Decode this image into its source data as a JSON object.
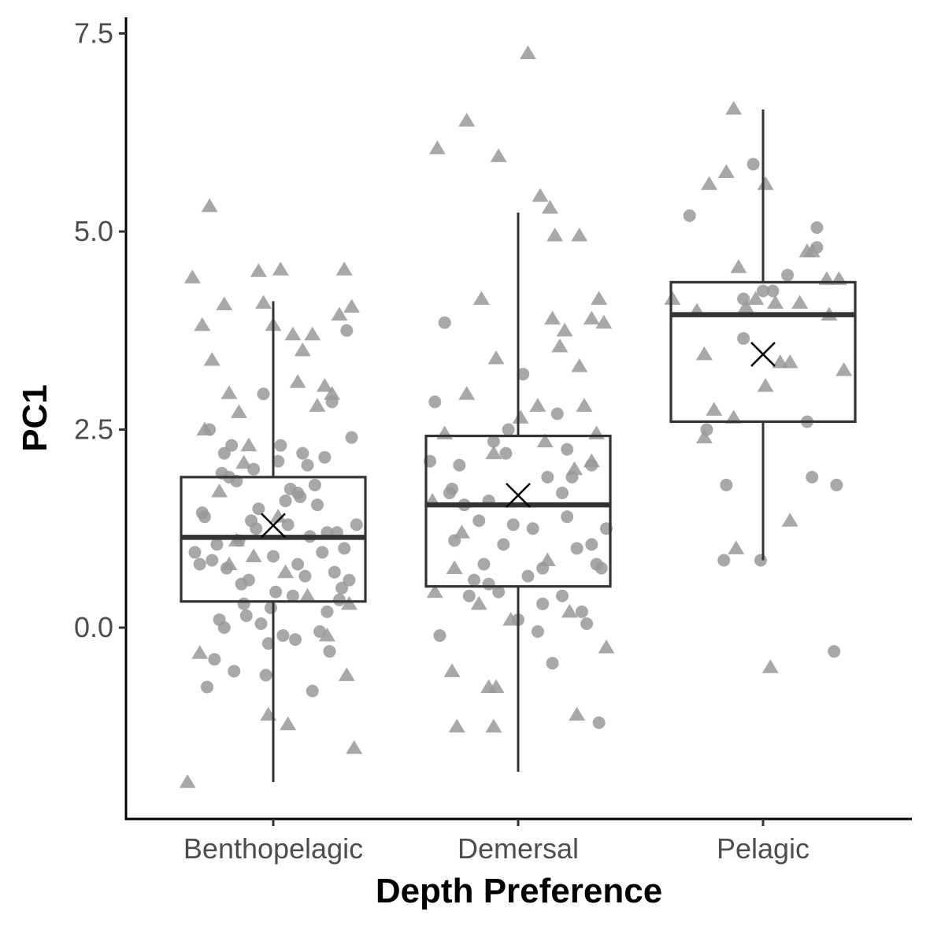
{
  "chart_data": {
    "type": "box",
    "xlabel": "Depth Preference",
    "ylabel": "PC1",
    "ylim": [
      -2.4,
      7.7
    ],
    "yticks": [
      0.0,
      2.5,
      5.0,
      7.5
    ],
    "ytick_labels": [
      "0.0",
      "2.5",
      "5.0",
      "7.5"
    ],
    "categories": [
      "Benthopelagic",
      "Demersal",
      "Pelagic"
    ],
    "grid": false,
    "legend": "none",
    "colors": {
      "box_line": "#333333",
      "points": "#999999",
      "axis": "#000000",
      "mean_marker": "#000000"
    },
    "boxes": [
      {
        "category": "Benthopelagic",
        "whisker_low": -1.95,
        "q1": 0.33,
        "median": 1.14,
        "q3": 1.9,
        "whisker_high": 4.12,
        "mean": 1.29
      },
      {
        "category": "Demersal",
        "whisker_low": -1.82,
        "q1": 0.52,
        "median": 1.55,
        "q3": 2.42,
        "whisker_high": 5.24,
        "mean": 1.67
      },
      {
        "category": "Pelagic",
        "whisker_low": 0.85,
        "q1": 2.6,
        "median": 3.95,
        "q3": 4.36,
        "whisker_high": 6.54,
        "mean": 3.45
      }
    ],
    "points": [
      {
        "category": "Benthopelagic",
        "shape": "triangle",
        "x": [
          -0.26,
          -0.33,
          -0.2,
          -0.29,
          -0.25,
          -0.18,
          -0.14,
          -0.12,
          -0.06,
          0.03,
          -0.04,
          0.0,
          0.08,
          0.12,
          0.16,
          0.21,
          0.29,
          0.32,
          0.27,
          0.24,
          0.18,
          0.1,
          -0.1,
          -0.22,
          -0.28,
          -0.15,
          -0.08,
          0.05,
          0.14,
          0.22,
          0.3,
          -0.3,
          -0.02,
          0.06,
          -0.35,
          0.33,
          0.31,
          -0.18,
          0.02
        ],
        "y": [
          5.32,
          4.42,
          4.08,
          3.82,
          3.38,
          2.96,
          2.72,
          2.08,
          4.5,
          4.52,
          4.1,
          3.82,
          3.7,
          3.5,
          3.7,
          3.05,
          4.52,
          4.05,
          3.95,
          2.95,
          2.8,
          3.1,
          2.3,
          1.72,
          2.5,
          1.1,
          0.9,
          0.7,
          0.4,
          -0.1,
          -0.6,
          -0.32,
          -1.1,
          -1.22,
          -1.95,
          -1.52,
          0.3,
          0.8,
          1.4
        ]
      },
      {
        "category": "Benthopelagic",
        "shape": "circle",
        "x": [
          -0.3,
          -0.28,
          -0.26,
          -0.24,
          -0.22,
          -0.2,
          -0.18,
          -0.16,
          -0.14,
          -0.12,
          -0.1,
          -0.08,
          -0.06,
          -0.04,
          -0.02,
          0.0,
          0.02,
          0.04,
          0.06,
          0.08,
          0.1,
          0.12,
          0.14,
          0.16,
          0.18,
          0.2,
          0.22,
          0.24,
          0.26,
          0.28,
          0.3,
          0.32,
          -0.27,
          -0.23,
          -0.19,
          -0.15,
          -0.11,
          -0.07,
          -0.03,
          0.01,
          0.05,
          0.09,
          0.13,
          0.17,
          0.21,
          0.25,
          0.29,
          -0.29,
          -0.21,
          -0.13,
          -0.05,
          0.03,
          0.11,
          0.19,
          0.27,
          -0.25,
          -0.17,
          -0.09,
          -0.01,
          0.07,
          0.15,
          0.23,
          0.31,
          -0.32,
          0.34,
          -0.2,
          0.1,
          0.22
        ],
        "y": [
          0.8,
          1.4,
          2.5,
          -0.4,
          0.1,
          2.2,
          1.9,
          -0.55,
          1.1,
          0.3,
          0.6,
          2.0,
          1.5,
          2.95,
          -0.2,
          0.9,
          2.1,
          -0.1,
          1.3,
          0.4,
          1.7,
          2.2,
          2.05,
          -0.8,
          1.55,
          0.95,
          0.2,
          2.85,
          1.2,
          0.5,
          3.75,
          2.4,
          -0.75,
          1.05,
          0.75,
          1.85,
          0.15,
          1.25,
          -0.6,
          0.45,
          1.6,
          -0.15,
          0.65,
          1.8,
          2.15,
          0.7,
          1.0,
          1.45,
          1.95,
          0.55,
          0.05,
          2.3,
          1.65,
          -0.05,
          0.35,
          0.85,
          2.3,
          1.35,
          0.25,
          1.75,
          1.15,
          -0.3,
          0.6,
          0.95,
          1.3,
          0.0,
          0.8,
          1.2
        ]
      },
      {
        "category": "Demersal",
        "shape": "triangle",
        "x": [
          -0.33,
          -0.21,
          -0.15,
          0.04,
          -0.08,
          0.09,
          0.13,
          0.15,
          0.25,
          0.33,
          0.35,
          0.14,
          0.19,
          0.17,
          -0.3,
          -0.21,
          -0.09,
          0.01,
          0.11,
          0.27,
          0.32,
          0.3,
          0.23,
          -0.26,
          -0.34,
          -0.23,
          -0.16,
          0.12,
          -0.27,
          -0.09,
          -0.12,
          -0.25,
          -0.1,
          0.24,
          0.36,
          -0.03,
          0.21,
          -0.35,
          -0.1,
          0.25,
          0.3,
          0.08
        ],
        "y": [
          6.05,
          6.4,
          4.15,
          7.25,
          5.95,
          5.45,
          5.3,
          4.95,
          4.95,
          4.15,
          3.85,
          3.9,
          3.75,
          3.55,
          2.45,
          2.95,
          3.4,
          2.65,
          2.35,
          2.8,
          2.45,
          2.1,
          2.0,
          0.75,
          0.45,
          1.2,
          0.3,
          0.85,
          -0.55,
          -0.75,
          -0.75,
          -1.25,
          -1.25,
          -1.1,
          -0.25,
          0.1,
          0.2,
          1.6,
          2.2,
          3.3,
          3.9,
          2.8
        ]
      },
      {
        "category": "Demersal",
        "shape": "circle",
        "x": [
          -0.34,
          -0.3,
          -0.26,
          -0.22,
          -0.18,
          -0.14,
          -0.1,
          -0.06,
          -0.02,
          0.02,
          0.06,
          0.1,
          0.14,
          0.18,
          0.22,
          0.26,
          0.3,
          0.34,
          -0.32,
          -0.28,
          -0.24,
          -0.2,
          -0.16,
          -0.12,
          -0.08,
          -0.04,
          0.0,
          0.04,
          0.08,
          0.12,
          0.16,
          0.2,
          0.24,
          0.28,
          0.32,
          -0.36,
          0.36,
          -0.12,
          0.2,
          0.3,
          -0.05,
          -0.27,
          0.18,
          0.33,
          0.1
        ],
        "y": [
          2.85,
          3.85,
          1.1,
          1.55,
          0.6,
          0.8,
          2.35,
          1.05,
          1.3,
          3.2,
          1.25,
          0.3,
          -0.45,
          0.4,
          1.9,
          0.2,
          2.05,
          0.75,
          -0.1,
          1.7,
          2.05,
          0.4,
          1.35,
          1.6,
          0.45,
          2.5,
          0.1,
          0.65,
          -0.05,
          1.9,
          2.7,
          2.25,
          1.0,
          0.05,
          0.8,
          2.1,
          1.25,
          0.55,
          1.4,
          1.05,
          2.2,
          1.75,
          1.7,
          -1.2,
          0.75
        ]
      },
      {
        "category": "Pelagic",
        "shape": "triangle",
        "x": [
          -0.37,
          -0.24,
          -0.2,
          -0.12,
          -0.1,
          -0.07,
          -0.03,
          0.01,
          0.07,
          0.11,
          0.2,
          0.26,
          0.31,
          0.33,
          0.27,
          0.11,
          0.03,
          -0.11,
          -0.15,
          -0.22,
          -0.24,
          0.01,
          -0.12,
          0.15,
          0.18,
          -0.27,
          0.05
        ],
        "y": [
          4.15,
          3.45,
          2.75,
          2.65,
          4.55,
          4.05,
          4.15,
          3.05,
          3.35,
          3.35,
          4.75,
          4.4,
          4.4,
          3.25,
          3.95,
          1.35,
          -0.5,
          1.0,
          5.75,
          5.6,
          2.4,
          5.6,
          6.55,
          4.1,
          4.75,
          4.0,
          4.1
        ]
      },
      {
        "category": "Pelagic",
        "shape": "circle",
        "x": [
          -0.3,
          -0.04,
          -0.08,
          0.0,
          0.1,
          0.22,
          0.22,
          -0.08,
          -0.23,
          0.18,
          -0.15,
          0.2,
          0.3,
          0.29,
          -0.16,
          -0.01,
          0.04
        ],
        "y": [
          5.2,
          5.85,
          4.15,
          4.25,
          4.45,
          4.8,
          5.05,
          3.65,
          2.5,
          2.6,
          1.8,
          1.9,
          1.8,
          -0.3,
          0.85,
          0.85,
          4.25
        ]
      }
    ]
  }
}
